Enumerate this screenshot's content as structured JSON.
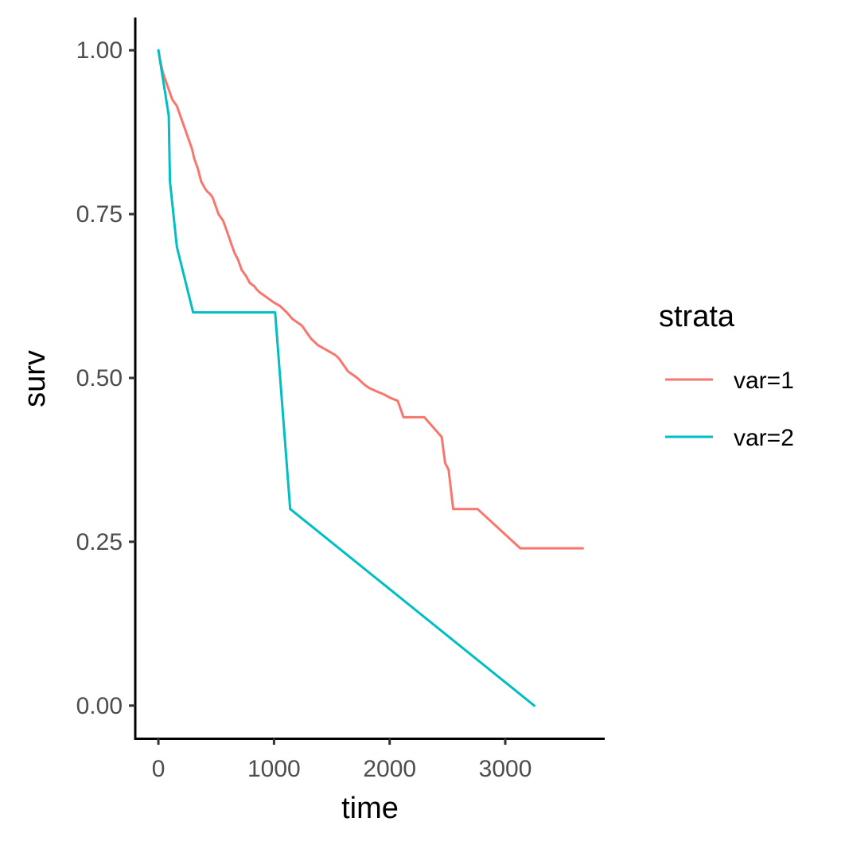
{
  "chart_data": {
    "type": "line",
    "step": true,
    "title": "",
    "xlabel": "time",
    "ylabel": "surv",
    "xlim": [
      -200,
      3860
    ],
    "ylim": [
      -0.05,
      1.05
    ],
    "xticks": [
      0,
      1000,
      2000,
      3000
    ],
    "xtick_labels": [
      "0",
      "1000",
      "2000",
      "3000"
    ],
    "yticks": [
      0,
      0.25,
      0.5,
      0.75,
      1.0
    ],
    "ytick_labels": [
      "0.00",
      "0.25",
      "0.50",
      "0.75",
      "1.00"
    ],
    "grid": false,
    "legend": {
      "title": "strata",
      "position": "right"
    },
    "series": [
      {
        "name": "var=1",
        "color": "#F8766D",
        "x": [
          0,
          20,
          40,
          60,
          80,
          100,
          120,
          140,
          160,
          180,
          200,
          230,
          260,
          290,
          310,
          340,
          370,
          400,
          420,
          450,
          470,
          490,
          520,
          560,
          600,
          630,
          660,
          690,
          720,
          760,
          790,
          830,
          850,
          880,
          920,
          960,
          1000,
          1050,
          1110,
          1160,
          1200,
          1240,
          1280,
          1320,
          1380,
          1430,
          1480,
          1530,
          1560,
          1600,
          1640,
          1680,
          1720,
          1780,
          1820,
          1880,
          1950,
          2000,
          2070,
          2120,
          2200,
          2300,
          2450,
          2480,
          2510,
          2530,
          2550,
          2760,
          3130,
          3670
        ],
        "y": [
          1.0,
          0.98,
          0.965,
          0.955,
          0.945,
          0.935,
          0.925,
          0.92,
          0.915,
          0.905,
          0.895,
          0.88,
          0.865,
          0.85,
          0.835,
          0.82,
          0.8,
          0.79,
          0.785,
          0.78,
          0.775,
          0.765,
          0.75,
          0.74,
          0.72,
          0.705,
          0.69,
          0.68,
          0.665,
          0.655,
          0.645,
          0.64,
          0.635,
          0.63,
          0.625,
          0.62,
          0.615,
          0.61,
          0.6,
          0.59,
          0.585,
          0.58,
          0.57,
          0.56,
          0.55,
          0.545,
          0.54,
          0.535,
          0.53,
          0.52,
          0.51,
          0.505,
          0.5,
          0.49,
          0.485,
          0.48,
          0.475,
          0.47,
          0.465,
          0.44,
          0.44,
          0.44,
          0.41,
          0.37,
          0.36,
          0.33,
          0.3,
          0.3,
          0.24,
          0.24
        ]
      },
      {
        "name": "var=2",
        "color": "#00BFC4",
        "x": [
          0,
          90,
          100,
          160,
          300,
          1010,
          1140,
          3250
        ],
        "y": [
          1.0,
          0.9,
          0.8,
          0.7,
          0.6,
          0.6,
          0.3,
          0.0
        ]
      }
    ]
  }
}
